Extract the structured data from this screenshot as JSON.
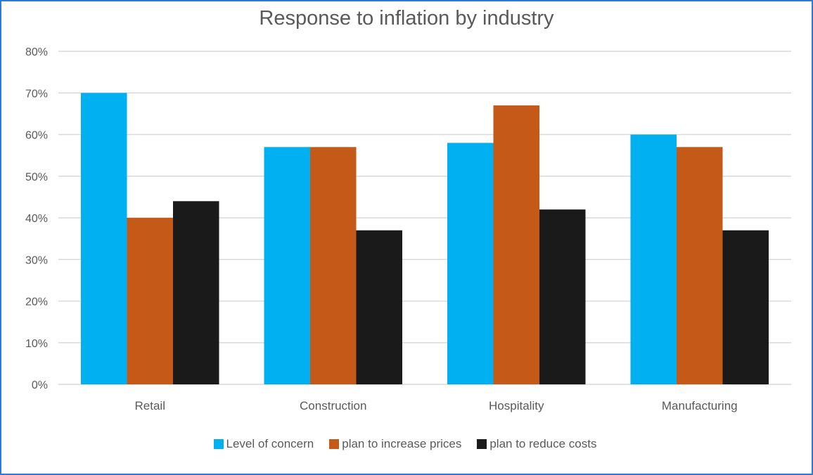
{
  "chart_data": {
    "type": "bar",
    "title": "Response to inflation by industry",
    "xlabel": "",
    "ylabel": "",
    "categories": [
      "Retail",
      "Construction",
      "Hospitality",
      "Manufacturing"
    ],
    "series": [
      {
        "name": "Level of concern",
        "color": "#00b0f0",
        "values": [
          70,
          57,
          58,
          60
        ]
      },
      {
        "name": "plan to increase prices",
        "color": "#c55a18",
        "values": [
          40,
          57,
          67,
          57
        ]
      },
      {
        "name": "plan to reduce costs",
        "color": "#1a1a1a",
        "values": [
          44,
          37,
          42,
          37
        ]
      }
    ],
    "ylim": [
      0,
      80
    ],
    "yticks": [
      "0%",
      "10%",
      "20%",
      "30%",
      "40%",
      "50%",
      "60%",
      "70%",
      "80%"
    ],
    "grid": true,
    "legend_position": "bottom"
  }
}
